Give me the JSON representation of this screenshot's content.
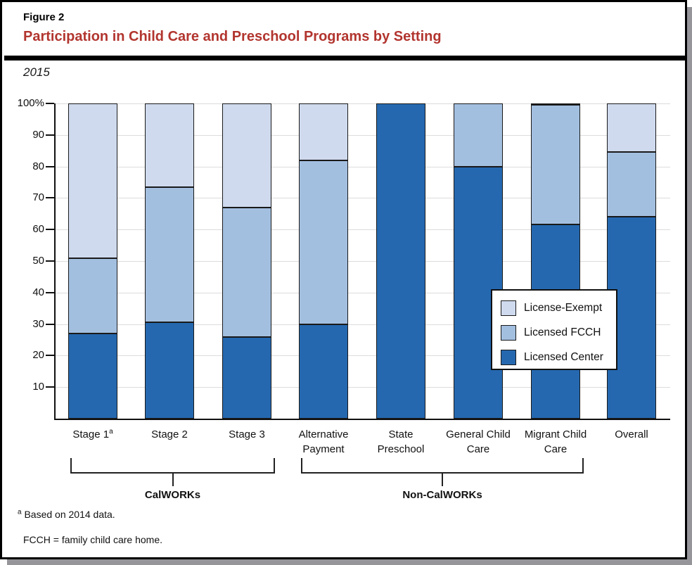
{
  "figure": {
    "label": "Figure 2",
    "title": "Participation in Child Care and Preschool Programs by Setting",
    "year": "2015"
  },
  "colors": {
    "title_red": "#b2352f",
    "licensed_center": "#2568af",
    "licensed_fcch": "#a3bfe0",
    "license_exempt": "#cfdaee"
  },
  "chart_data": {
    "type": "bar",
    "stacked": true,
    "percent_scale": true,
    "title": "Participation in Child Care and Preschool Programs by Setting",
    "subtitle": "2015",
    "ylim": [
      0,
      100
    ],
    "grid": true,
    "y_ticks": [
      10,
      20,
      30,
      40,
      50,
      60,
      70,
      80,
      90,
      100
    ],
    "y_tick_labels": [
      "10",
      "20",
      "30",
      "40",
      "50",
      "60",
      "70",
      "80",
      "90",
      "100%"
    ],
    "categories": [
      "Stage 1",
      "Stage 2",
      "Stage 3",
      "Alternative Payment",
      "State Preschool",
      "General Child Care",
      "Migrant Child Care",
      "Overall"
    ],
    "category_label_lines": [
      [
        "Stage 1"
      ],
      [
        "Stage 2"
      ],
      [
        "Stage 3"
      ],
      [
        "Alternative",
        "Payment"
      ],
      [
        "State",
        "Preschool"
      ],
      [
        "General Child",
        "Care"
      ],
      [
        "Migrant Child",
        "Care"
      ],
      [
        "Overall"
      ]
    ],
    "category_footnote_marks": [
      "a",
      "",
      "",
      "",
      "",
      "",
      "",
      ""
    ],
    "series": [
      {
        "name": "Licensed Center",
        "color": "#2568af",
        "values": [
          27,
          30.5,
          26,
          30,
          100,
          80,
          61.5,
          64
        ]
      },
      {
        "name": "Licensed FCCH",
        "color": "#a3bfe0",
        "values": [
          24,
          43,
          41,
          52,
          0,
          20,
          38,
          20.5
        ]
      },
      {
        "name": "License-Exempt",
        "color": "#cfdaee",
        "values": [
          49,
          26.5,
          33,
          18,
          0,
          0,
          0.5,
          15.5
        ]
      }
    ],
    "legend": {
      "position": "middle-right",
      "entries": [
        {
          "label": "License-Exempt",
          "color": "#cfdaee"
        },
        {
          "label": "Licensed FCCH",
          "color": "#a3bfe0"
        },
        {
          "label": "Licensed Center",
          "color": "#2568af"
        }
      ]
    },
    "group_brackets": [
      {
        "label": "CalWORKs",
        "from": "Stage 1",
        "to": "Stage 3"
      },
      {
        "label": "Non-CalWORKs",
        "from": "Alternative Payment",
        "to": "Migrant Child Care"
      }
    ]
  },
  "footnotes": {
    "note_a_mark": "a",
    "note_a_text": "Based on 2014 data.",
    "note_fcch": "FCCH = family child care home."
  }
}
